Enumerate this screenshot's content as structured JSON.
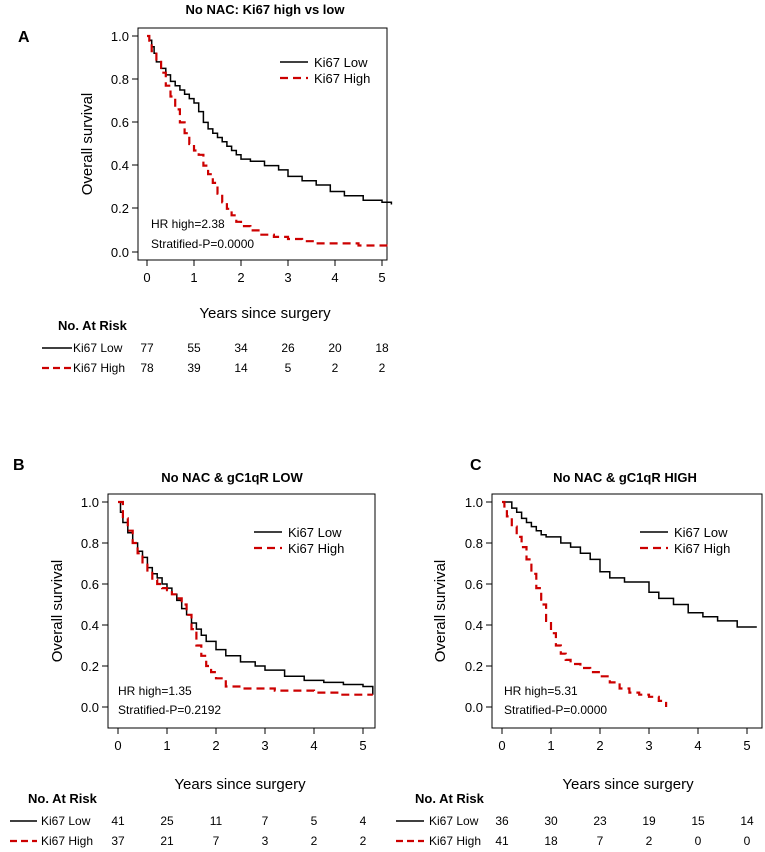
{
  "chart_data": [
    {
      "type": "line",
      "panel": "A",
      "title": "No NAC: Ki67 high vs low",
      "xlabel": "Years since surgery",
      "ylabel": "Overall survival",
      "xlim": [
        0,
        5.2
      ],
      "ylim": [
        0,
        1.0
      ],
      "xticks": [
        0,
        1,
        2,
        3,
        4,
        5
      ],
      "yticks": [
        "0.0",
        "0.2",
        "0.4",
        "0.6",
        "0.8",
        "1.0"
      ],
      "legend": [
        "Ki67 Low",
        "Ki67 High"
      ],
      "annotations": [
        "HR high=2.38",
        "Stratified-P=0.0000"
      ],
      "series": [
        {
          "name": "Ki67 Low",
          "color": "#000000",
          "dash": "solid",
          "x": [
            0,
            0.05,
            0.1,
            0.15,
            0.2,
            0.3,
            0.4,
            0.5,
            0.6,
            0.7,
            0.8,
            0.9,
            1.0,
            1.1,
            1.2,
            1.3,
            1.4,
            1.5,
            1.6,
            1.7,
            1.8,
            1.9,
            2.0,
            2.2,
            2.5,
            2.8,
            3.0,
            3.3,
            3.6,
            3.9,
            4.2,
            4.6,
            5.0,
            5.2
          ],
          "y": [
            1.0,
            0.98,
            0.95,
            0.92,
            0.88,
            0.85,
            0.82,
            0.79,
            0.77,
            0.75,
            0.73,
            0.71,
            0.69,
            0.65,
            0.6,
            0.57,
            0.55,
            0.53,
            0.51,
            0.49,
            0.47,
            0.45,
            0.43,
            0.42,
            0.4,
            0.38,
            0.35,
            0.33,
            0.31,
            0.28,
            0.26,
            0.24,
            0.23,
            0.22
          ]
        },
        {
          "name": "Ki67 High",
          "color": "#cc0000",
          "dash": "dashed",
          "x": [
            0,
            0.05,
            0.1,
            0.2,
            0.3,
            0.4,
            0.5,
            0.6,
            0.7,
            0.8,
            0.9,
            1.0,
            1.1,
            1.2,
            1.3,
            1.4,
            1.5,
            1.6,
            1.7,
            1.8,
            1.9,
            2.0,
            2.2,
            2.4,
            2.7,
            3.0,
            3.3,
            3.6,
            4.0,
            4.5,
            5.0,
            5.2
          ],
          "y": [
            1.0,
            0.97,
            0.93,
            0.88,
            0.83,
            0.77,
            0.72,
            0.66,
            0.6,
            0.55,
            0.5,
            0.47,
            0.45,
            0.4,
            0.36,
            0.32,
            0.27,
            0.23,
            0.2,
            0.17,
            0.14,
            0.12,
            0.1,
            0.08,
            0.07,
            0.06,
            0.05,
            0.04,
            0.04,
            0.03,
            0.03,
            0.03
          ]
        }
      ],
      "risk_table": {
        "header": "No. At Risk",
        "rows": [
          {
            "label": "Ki67 Low",
            "values": [
              "77",
              "55",
              "34",
              "26",
              "20",
              "18"
            ]
          },
          {
            "label": "Ki67 High",
            "values": [
              "78",
              "39",
              "14",
              "5",
              "2",
              "2"
            ]
          }
        ]
      }
    },
    {
      "type": "line",
      "panel": "B",
      "title": "No NAC & gC1qR LOW",
      "xlabel": "Years since surgery",
      "ylabel": "Overall survival",
      "xlim": [
        0,
        5.2
      ],
      "ylim": [
        0,
        1.0
      ],
      "xticks": [
        0,
        1,
        2,
        3,
        4,
        5
      ],
      "yticks": [
        "0.0",
        "0.2",
        "0.4",
        "0.6",
        "0.8",
        "1.0"
      ],
      "legend": [
        "Ki67 Low",
        "Ki67 High"
      ],
      "annotations": [
        "HR high=1.35",
        "Stratified-P=0.2192"
      ],
      "series": [
        {
          "name": "Ki67 Low",
          "color": "#000000",
          "dash": "solid",
          "x": [
            0,
            0.05,
            0.1,
            0.2,
            0.3,
            0.4,
            0.5,
            0.6,
            0.7,
            0.8,
            0.9,
            1.0,
            1.1,
            1.2,
            1.3,
            1.4,
            1.5,
            1.6,
            1.7,
            1.8,
            2.0,
            2.2,
            2.5,
            2.8,
            3.0,
            3.4,
            3.8,
            4.2,
            4.6,
            5.0,
            5.2
          ],
          "y": [
            1.0,
            0.95,
            0.9,
            0.85,
            0.8,
            0.76,
            0.73,
            0.68,
            0.65,
            0.63,
            0.6,
            0.58,
            0.55,
            0.52,
            0.48,
            0.45,
            0.41,
            0.38,
            0.35,
            0.32,
            0.28,
            0.25,
            0.22,
            0.2,
            0.18,
            0.15,
            0.13,
            0.12,
            0.11,
            0.1,
            0.06
          ]
        },
        {
          "name": "Ki67 High",
          "color": "#cc0000",
          "dash": "dashed",
          "x": [
            0,
            0.1,
            0.2,
            0.3,
            0.4,
            0.5,
            0.6,
            0.7,
            0.8,
            0.9,
            1.0,
            1.1,
            1.2,
            1.3,
            1.4,
            1.5,
            1.6,
            1.7,
            1.8,
            1.9,
            2.0,
            2.2,
            2.5,
            2.8,
            3.2,
            3.6,
            4.0,
            4.5,
            5.0,
            5.2
          ],
          "y": [
            1.0,
            0.92,
            0.86,
            0.8,
            0.75,
            0.7,
            0.66,
            0.62,
            0.6,
            0.58,
            0.57,
            0.55,
            0.53,
            0.5,
            0.45,
            0.38,
            0.3,
            0.25,
            0.2,
            0.17,
            0.14,
            0.1,
            0.09,
            0.09,
            0.08,
            0.08,
            0.07,
            0.06,
            0.06,
            0.06
          ]
        }
      ],
      "risk_table": {
        "header": "No. At Risk",
        "rows": [
          {
            "label": "Ki67 Low",
            "values": [
              "41",
              "25",
              "11",
              "7",
              "5",
              "4"
            ]
          },
          {
            "label": "Ki67 High",
            "values": [
              "37",
              "21",
              "7",
              "3",
              "2",
              "2"
            ]
          }
        ]
      }
    },
    {
      "type": "line",
      "panel": "C",
      "title": "No NAC & gC1qR HIGH",
      "xlabel": "Years since surgery",
      "ylabel": "Overall survival",
      "xlim": [
        0,
        5.2
      ],
      "ylim": [
        0,
        1.0
      ],
      "xticks": [
        0,
        1,
        2,
        3,
        4,
        5
      ],
      "yticks": [
        "0.0",
        "0.2",
        "0.4",
        "0.6",
        "0.8",
        "1.0"
      ],
      "legend": [
        "Ki67 Low",
        "Ki67 High"
      ],
      "annotations": [
        "HR high=5.31",
        "Stratified-P=0.0000"
      ],
      "series": [
        {
          "name": "Ki67 Low",
          "color": "#000000",
          "dash": "solid",
          "x": [
            0,
            0.1,
            0.2,
            0.3,
            0.4,
            0.5,
            0.6,
            0.7,
            0.8,
            0.9,
            1.0,
            1.2,
            1.4,
            1.6,
            1.8,
            2.0,
            2.2,
            2.5,
            2.8,
            3.0,
            3.2,
            3.5,
            3.8,
            4.1,
            4.4,
            4.8,
            5.2
          ],
          "y": [
            1.0,
            1.0,
            0.97,
            0.95,
            0.92,
            0.9,
            0.88,
            0.86,
            0.84,
            0.83,
            0.83,
            0.8,
            0.78,
            0.75,
            0.72,
            0.66,
            0.63,
            0.61,
            0.61,
            0.56,
            0.53,
            0.5,
            0.46,
            0.44,
            0.42,
            0.39,
            0.39
          ]
        },
        {
          "name": "Ki67 High",
          "color": "#cc0000",
          "dash": "dashed",
          "x": [
            0,
            0.05,
            0.1,
            0.2,
            0.3,
            0.4,
            0.5,
            0.6,
            0.7,
            0.8,
            0.9,
            1.0,
            1.1,
            1.2,
            1.3,
            1.4,
            1.6,
            1.8,
            2.0,
            2.2,
            2.4,
            2.6,
            2.8,
            3.0,
            3.2,
            3.35
          ],
          "y": [
            1.0,
            0.97,
            0.93,
            0.88,
            0.83,
            0.78,
            0.72,
            0.65,
            0.58,
            0.5,
            0.42,
            0.36,
            0.3,
            0.26,
            0.23,
            0.21,
            0.19,
            0.17,
            0.15,
            0.12,
            0.09,
            0.07,
            0.06,
            0.05,
            0.03,
            0.0
          ]
        }
      ],
      "risk_table": {
        "header": "No. At Risk",
        "rows": [
          {
            "label": "Ki67 Low",
            "values": [
              "36",
              "30",
              "23",
              "19",
              "15",
              "14"
            ]
          },
          {
            "label": "Ki67 High",
            "values": [
              "41",
              "18",
              "7",
              "2",
              "0",
              "0"
            ]
          }
        ]
      }
    }
  ]
}
